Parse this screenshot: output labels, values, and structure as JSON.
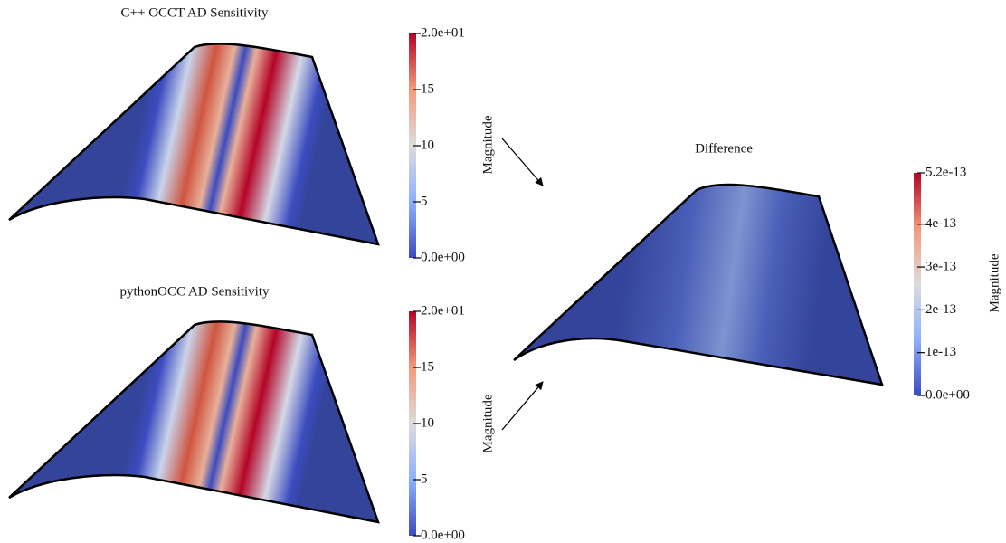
{
  "panels": [
    {
      "title": "C++ OCCT AD Sensitivity",
      "colorbar": {
        "label": "Magnitude",
        "lim": [
          0,
          20
        ],
        "ticks": [
          {
            "value": 0,
            "label": "0.0e+00"
          },
          5,
          10,
          15,
          {
            "value": 20,
            "label": "2.0e+01"
          }
        ]
      }
    },
    {
      "title": "pythonOCC AD Sensitivity",
      "colorbar": {
        "label": "Magnitude",
        "lim": [
          0,
          20
        ],
        "ticks": [
          {
            "value": 0,
            "label": "0.0e+00"
          },
          5,
          10,
          15,
          {
            "value": 20,
            "label": "2.0e+01"
          }
        ]
      }
    },
    {
      "title": "Difference",
      "colorbar": {
        "label": "Magnitude",
        "lim": [
          0,
          5.2e-13
        ],
        "ticks": [
          {
            "value": 0,
            "label": "0.0e+00"
          },
          {
            "value": 1e-13,
            "label": "1e-13"
          },
          {
            "value": 2e-13,
            "label": "2e-13"
          },
          {
            "value": 3e-13,
            "label": "3e-13"
          },
          {
            "value": 4e-13,
            "label": "4e-13"
          },
          {
            "value": 5.2e-13,
            "label": "5.2e-13"
          }
        ]
      }
    }
  ]
}
